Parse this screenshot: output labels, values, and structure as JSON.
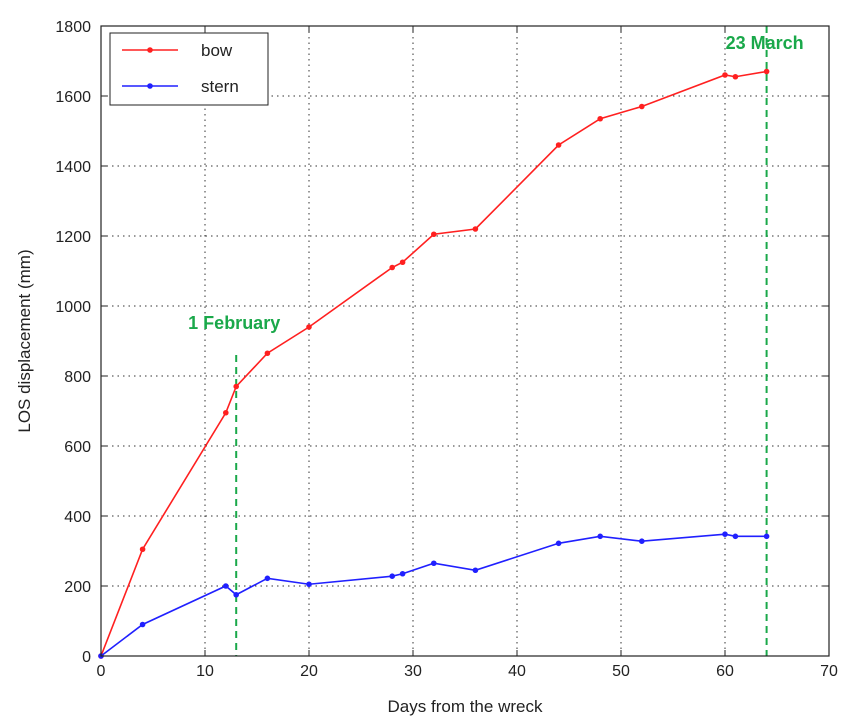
{
  "chart_data": {
    "type": "line",
    "title": "",
    "xlabel": "Days from the wreck",
    "ylabel": "LOS displacement (mm)",
    "xlim": [
      0,
      70
    ],
    "ylim": [
      0,
      1800
    ],
    "xticks": [
      0,
      10,
      20,
      30,
      40,
      50,
      60,
      70
    ],
    "yticks": [
      0,
      200,
      400,
      600,
      800,
      1000,
      1200,
      1400,
      1600,
      1800
    ],
    "grid": true,
    "legend_position": "top-left",
    "series": [
      {
        "name": "bow",
        "color": "#ff2020",
        "x": [
          0,
          4,
          12,
          13,
          16,
          20,
          28,
          29,
          32,
          36,
          44,
          48,
          52,
          60,
          61,
          64
        ],
        "y": [
          0,
          305,
          695,
          770,
          865,
          940,
          1110,
          1125,
          1205,
          1220,
          1460,
          1535,
          1570,
          1660,
          1655,
          1670
        ]
      },
      {
        "name": "stern",
        "color": "#2020ff",
        "x": [
          0,
          4,
          12,
          13,
          16,
          20,
          28,
          29,
          32,
          36,
          44,
          48,
          52,
          60,
          61,
          64
        ],
        "y": [
          0,
          90,
          200,
          175,
          222,
          205,
          228,
          235,
          265,
          245,
          322,
          342,
          328,
          348,
          342,
          342
        ]
      }
    ],
    "annotations": [
      {
        "text": "1 February",
        "x": 13,
        "y_top": 860,
        "color": "#1aa84a"
      },
      {
        "text": "23 March",
        "x": 64,
        "y_top": 1800,
        "color": "#1aa84a"
      }
    ]
  }
}
